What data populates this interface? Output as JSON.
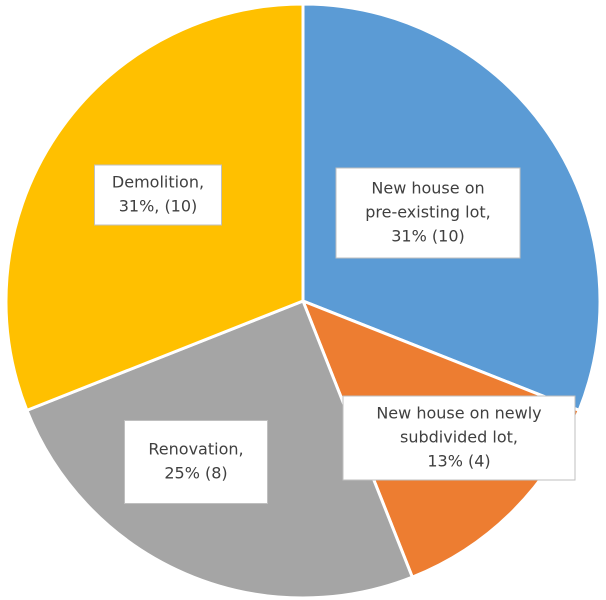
{
  "chart_data": {
    "type": "pie",
    "values": [
      31,
      13,
      25,
      31
    ],
    "value_labels": [
      [
        "New house on",
        "pre-existing lot,",
        "31% (10)"
      ],
      [
        "New house on newly",
        "subdivided lot,",
        "13% (4)"
      ],
      [
        "Renovation,",
        "25% (8)"
      ],
      [
        "Demolition,",
        "31%, (10)"
      ]
    ],
    "colors": [
      "#5b9bd5",
      "#ed7d31",
      "#a5a5a5",
      "#ffc000"
    ]
  }
}
